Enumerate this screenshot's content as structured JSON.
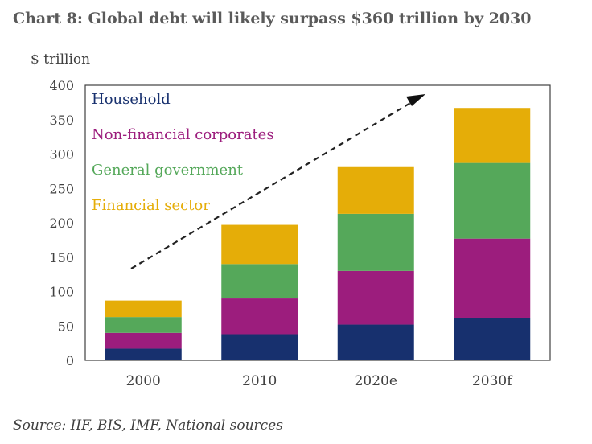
{
  "title": "Chart 8:  Global debt will likely surpass $360 trillion by 2030",
  "source": "Source: IIF, BIS, IMF, National sources",
  "chart_data": {
    "type": "bar",
    "stacked": true,
    "title": "Chart 8:  Global debt will likely surpass $360 trillion by 2030",
    "ylabel": "$ trillion",
    "xlabel": "",
    "ylim": [
      0,
      400
    ],
    "yticks": [
      0,
      50,
      100,
      150,
      200,
      250,
      300,
      350,
      400
    ],
    "categories": [
      "2000",
      "2010",
      "2020e",
      "2030f"
    ],
    "series": [
      {
        "name": "Household",
        "color": "#17306e",
        "values": [
          17,
          38,
          52,
          62
        ]
      },
      {
        "name": "Non-financial corporates",
        "color": "#9c1d7d",
        "values": [
          23,
          52,
          78,
          115
        ]
      },
      {
        "name": "General government",
        "color": "#55a85a",
        "values": [
          23,
          50,
          83,
          110
        ]
      },
      {
        "name": "Financial sector",
        "color": "#e5ad08",
        "values": [
          24,
          57,
          68,
          80
        ]
      }
    ],
    "grid": false,
    "legend_position": "top-left",
    "annotation": "dashed upward arrow"
  }
}
